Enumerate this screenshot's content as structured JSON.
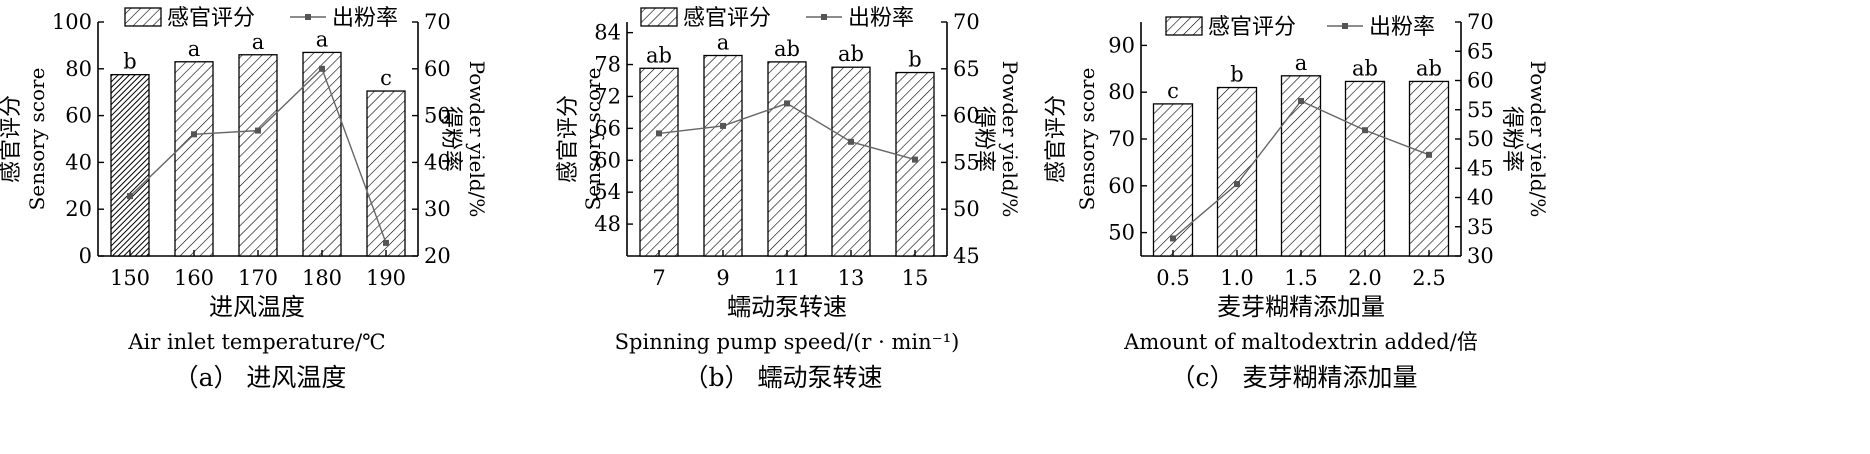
{
  "legend": {
    "bar_label": "感官评分",
    "line_label": "出粉率"
  },
  "chart_data": [
    {
      "type": "bar+line",
      "caption": "（a） 进风温度",
      "xlabel_cn": "进风温度",
      "xlabel_en": "Air inlet temperature/℃",
      "ylabel_left_cn": "感官评分",
      "ylabel_left_en": "Sensory score",
      "ylabel_right_en": "Powder yield/%",
      "ylabel_right_cn": "得粉率",
      "categories": [
        "150",
        "160",
        "170",
        "180",
        "190"
      ],
      "ylim_left": [
        0,
        100
      ],
      "yticks_left": [
        "0",
        "20",
        "40",
        "60",
        "80",
        "100"
      ],
      "ylim_right": [
        20,
        70
      ],
      "yticks_right": [
        "20",
        "30",
        "40",
        "50",
        "60",
        "70"
      ],
      "series": [
        {
          "name": "感官评分",
          "kind": "bar",
          "axis": "left",
          "values": [
            77.5,
            83,
            86,
            87,
            70.5
          ],
          "significance": [
            "b",
            "a",
            "a",
            "a",
            "c"
          ]
        },
        {
          "name": "出粉率",
          "kind": "line",
          "axis": "right",
          "values": [
            32.8,
            46,
            46.8,
            60,
            22.8
          ]
        }
      ]
    },
    {
      "type": "bar+line",
      "caption": "（b） 蠕动泵转速",
      "xlabel_cn": "蠕动泵转速",
      "xlabel_en": "Spinning pump speed/(r · min⁻¹)",
      "ylabel_left_cn": "感官评分",
      "ylabel_left_en": "Sensory score",
      "ylabel_right_en": "Powder yield/%",
      "ylabel_right_cn": "得粉率",
      "categories": [
        "7",
        "9",
        "11",
        "13",
        "15"
      ],
      "ylim_left": [
        42,
        86
      ],
      "yticks_left": [
        "48",
        "54",
        "60",
        "66",
        "72",
        "78",
        "84"
      ],
      "ylim_right": [
        45,
        70
      ],
      "yticks_right": [
        "45",
        "50",
        "55",
        "60",
        "65",
        "70"
      ],
      "series": [
        {
          "name": "感官评分",
          "kind": "bar",
          "axis": "left",
          "values": [
            77.3,
            79.7,
            78.5,
            77.5,
            76.5
          ],
          "significance": [
            "ab",
            "a",
            "ab",
            "ab",
            "b"
          ]
        },
        {
          "name": "出粉率",
          "kind": "line",
          "axis": "right",
          "values": [
            58.1,
            58.9,
            61.3,
            57.2,
            55.3
          ]
        }
      ]
    },
    {
      "type": "bar+line",
      "caption": "（c） 麦芽糊精添加量",
      "xlabel_cn": "麦芽糊精添加量",
      "xlabel_en": "Amount of maltodextrin added/倍",
      "ylabel_left_cn": "感官评分",
      "ylabel_left_en": "Sensory score",
      "ylabel_right_en": "Powder yield/%",
      "ylabel_right_cn": "得粉率",
      "categories": [
        "0.5",
        "1.0",
        "1.5",
        "2.0",
        "2.5"
      ],
      "ylim_left": [
        45,
        95
      ],
      "yticks_left": [
        "50",
        "60",
        "70",
        "80",
        "90"
      ],
      "ylim_right": [
        30,
        70
      ],
      "yticks_right": [
        "30",
        "35",
        "40",
        "45",
        "50",
        "55",
        "60",
        "65",
        "70"
      ],
      "series": [
        {
          "name": "感官评分",
          "kind": "bar",
          "axis": "left",
          "values": [
            77.5,
            81,
            83.5,
            82.3,
            82.3
          ],
          "significance": [
            "c",
            "b",
            "a",
            "ab",
            "ab"
          ]
        },
        {
          "name": "出粉率",
          "kind": "line",
          "axis": "right",
          "values": [
            33,
            42.3,
            56.5,
            51.5,
            47.3
          ]
        }
      ]
    }
  ]
}
